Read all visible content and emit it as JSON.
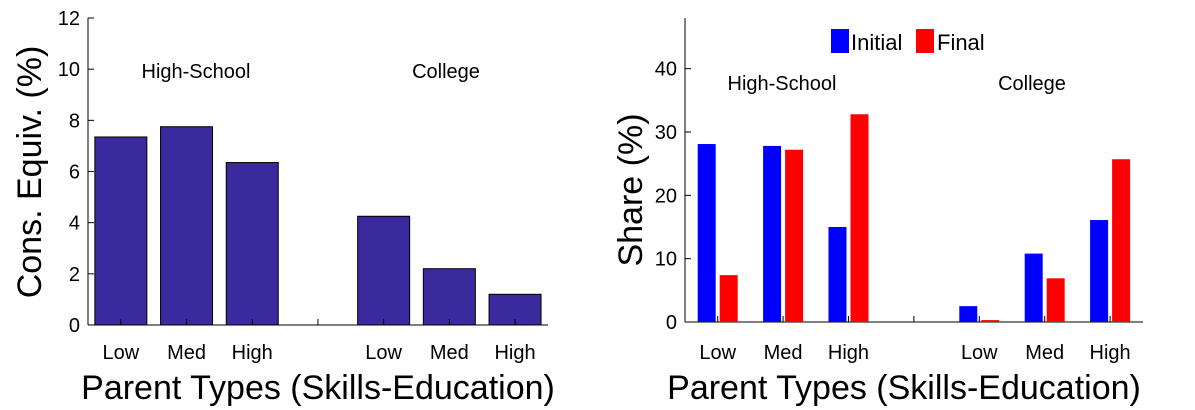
{
  "chart_data": [
    {
      "type": "bar",
      "categories": [
        "Low",
        "Med",
        "High",
        "",
        "Low",
        "Med",
        "High"
      ],
      "group_labels": [
        "High-School",
        "College"
      ],
      "values": [
        7.35,
        7.75,
        6.35,
        null,
        4.25,
        2.2,
        1.2
      ],
      "xlabel": "Parent Types (Skills-Education)",
      "ylabel": "Cons. Equiv. (%)",
      "ylim": [
        0,
        12
      ],
      "yticks": [
        0,
        2,
        4,
        6,
        8,
        10,
        12
      ],
      "bar_color": "#3a2a9e",
      "grid": false
    },
    {
      "type": "bar",
      "categories": [
        "Low",
        "Med",
        "High",
        "",
        "Low",
        "Med",
        "High"
      ],
      "group_labels": [
        "High-School",
        "College"
      ],
      "series": [
        {
          "name": "Initial",
          "color": "#0000ff",
          "values": [
            28.1,
            27.8,
            15.0,
            null,
            2.5,
            10.8,
            16.1
          ]
        },
        {
          "name": "Final",
          "color": "#ff0000",
          "values": [
            7.4,
            27.2,
            32.8,
            null,
            0.3,
            6.9,
            25.7
          ]
        }
      ],
      "xlabel": "Parent Types (Skills-Education)",
      "ylabel": "Share (%)",
      "ylim": [
        0,
        48
      ],
      "yticks": [
        0,
        10,
        20,
        30,
        40
      ],
      "legend": "top",
      "grid": false
    }
  ]
}
